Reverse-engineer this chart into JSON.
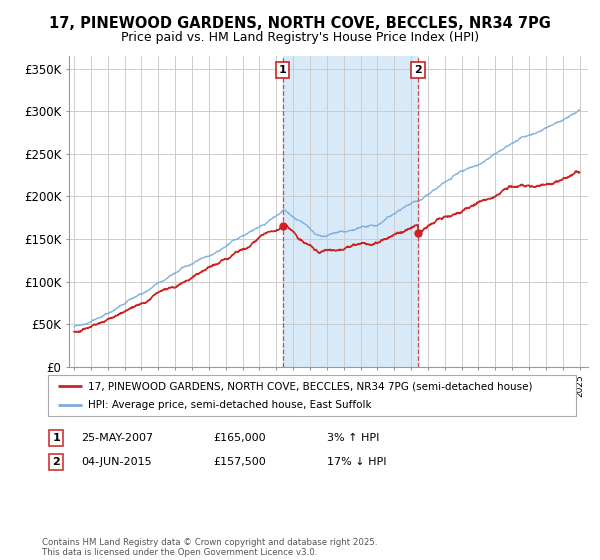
{
  "title_line1": "17, PINEWOOD GARDENS, NORTH COVE, BECCLES, NR34 7PG",
  "title_line2": "Price paid vs. HM Land Registry's House Price Index (HPI)",
  "ylabel_ticks": [
    "£0",
    "£50K",
    "£100K",
    "£150K",
    "£200K",
    "£250K",
    "£300K",
    "£350K"
  ],
  "ytick_values": [
    0,
    50000,
    100000,
    150000,
    200000,
    250000,
    300000,
    350000
  ],
  "ylim": [
    0,
    365000
  ],
  "xlim_start": 1994.7,
  "xlim_end": 2025.5,
  "hpi_color": "#7aabdc",
  "price_color": "#cc2222",
  "sale1_x": 2007.39,
  "sale1_y": 165000,
  "sale2_x": 2015.42,
  "sale2_y": 157500,
  "annotation1_label": "1",
  "annotation2_label": "2",
  "legend_line1": "17, PINEWOOD GARDENS, NORTH COVE, BECCLES, NR34 7PG (semi-detached house)",
  "legend_line2": "HPI: Average price, semi-detached house, East Suffolk",
  "bg_color": "#ffffff",
  "plot_bg_color": "#ffffff",
  "grid_color": "#cccccc",
  "shade_color": "#d8eaf8",
  "title_fontsize": 10.5,
  "axis_fontsize": 8.5
}
